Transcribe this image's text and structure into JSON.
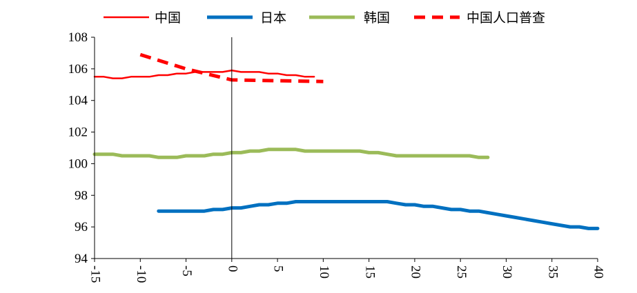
{
  "chart_data": {
    "type": "line",
    "title": "",
    "xlabel": "",
    "ylabel": "",
    "xlim": [
      -15,
      40
    ],
    "ylim": [
      94,
      108
    ],
    "x_ticks": [
      -15,
      -10,
      -5,
      0,
      5,
      10,
      15,
      20,
      25,
      30,
      35,
      40
    ],
    "y_ticks": [
      94,
      96,
      98,
      100,
      102,
      104,
      106,
      108
    ],
    "grid": false,
    "legend_position": "top",
    "series": [
      {
        "name": "中国",
        "color": "#ff0000",
        "style": "solid-thin",
        "points": [
          [
            -15,
            105.5
          ],
          [
            -14,
            105.5
          ],
          [
            -13,
            105.4
          ],
          [
            -12,
            105.4
          ],
          [
            -11,
            105.5
          ],
          [
            -10,
            105.5
          ],
          [
            -9,
            105.5
          ],
          [
            -8,
            105.6
          ],
          [
            -7,
            105.6
          ],
          [
            -6,
            105.7
          ],
          [
            -5,
            105.7
          ],
          [
            -4,
            105.8
          ],
          [
            -3,
            105.8
          ],
          [
            -2,
            105.8
          ],
          [
            -1,
            105.8
          ],
          [
            0,
            105.9
          ],
          [
            1,
            105.8
          ],
          [
            2,
            105.8
          ],
          [
            3,
            105.8
          ],
          [
            4,
            105.7
          ],
          [
            5,
            105.7
          ],
          [
            6,
            105.6
          ],
          [
            7,
            105.6
          ],
          [
            8,
            105.5
          ],
          [
            9,
            105.5
          ]
        ]
      },
      {
        "name": "日本",
        "color": "#0070c0",
        "style": "solid-thick",
        "points": [
          [
            -8,
            97.0
          ],
          [
            -7,
            97.0
          ],
          [
            -6,
            97.0
          ],
          [
            -5,
            97.0
          ],
          [
            -4,
            97.0
          ],
          [
            -3,
            97.0
          ],
          [
            -2,
            97.1
          ],
          [
            -1,
            97.1
          ],
          [
            0,
            97.2
          ],
          [
            1,
            97.2
          ],
          [
            2,
            97.3
          ],
          [
            3,
            97.4
          ],
          [
            4,
            97.4
          ],
          [
            5,
            97.5
          ],
          [
            6,
            97.5
          ],
          [
            7,
            97.6
          ],
          [
            8,
            97.6
          ],
          [
            9,
            97.6
          ],
          [
            10,
            97.6
          ],
          [
            11,
            97.6
          ],
          [
            12,
            97.6
          ],
          [
            13,
            97.6
          ],
          [
            14,
            97.6
          ],
          [
            15,
            97.6
          ],
          [
            16,
            97.6
          ],
          [
            17,
            97.6
          ],
          [
            18,
            97.5
          ],
          [
            19,
            97.4
          ],
          [
            20,
            97.4
          ],
          [
            21,
            97.3
          ],
          [
            22,
            97.3
          ],
          [
            23,
            97.2
          ],
          [
            24,
            97.1
          ],
          [
            25,
            97.1
          ],
          [
            26,
            97.0
          ],
          [
            27,
            97.0
          ],
          [
            28,
            96.9
          ],
          [
            29,
            96.8
          ],
          [
            30,
            96.7
          ],
          [
            31,
            96.6
          ],
          [
            32,
            96.5
          ],
          [
            33,
            96.4
          ],
          [
            34,
            96.3
          ],
          [
            35,
            96.2
          ],
          [
            36,
            96.1
          ],
          [
            37,
            96.0
          ],
          [
            38,
            96.0
          ],
          [
            39,
            95.9
          ],
          [
            40,
            95.9
          ]
        ]
      },
      {
        "name": "韩国",
        "color": "#9bbb59",
        "style": "solid-thick",
        "points": [
          [
            -15,
            100.6
          ],
          [
            -14,
            100.6
          ],
          [
            -13,
            100.6
          ],
          [
            -12,
            100.5
          ],
          [
            -11,
            100.5
          ],
          [
            -10,
            100.5
          ],
          [
            -9,
            100.5
          ],
          [
            -8,
            100.4
          ],
          [
            -7,
            100.4
          ],
          [
            -6,
            100.4
          ],
          [
            -5,
            100.5
          ],
          [
            -4,
            100.5
          ],
          [
            -3,
            100.5
          ],
          [
            -2,
            100.6
          ],
          [
            -1,
            100.6
          ],
          [
            0,
            100.7
          ],
          [
            1,
            100.7
          ],
          [
            2,
            100.8
          ],
          [
            3,
            100.8
          ],
          [
            4,
            100.9
          ],
          [
            5,
            100.9
          ],
          [
            6,
            100.9
          ],
          [
            7,
            100.9
          ],
          [
            8,
            100.8
          ],
          [
            9,
            100.8
          ],
          [
            10,
            100.8
          ],
          [
            11,
            100.8
          ],
          [
            12,
            100.8
          ],
          [
            13,
            100.8
          ],
          [
            14,
            100.8
          ],
          [
            15,
            100.7
          ],
          [
            16,
            100.7
          ],
          [
            17,
            100.6
          ],
          [
            18,
            100.5
          ],
          [
            19,
            100.5
          ],
          [
            20,
            100.5
          ],
          [
            21,
            100.5
          ],
          [
            22,
            100.5
          ],
          [
            23,
            100.5
          ],
          [
            24,
            100.5
          ],
          [
            25,
            100.5
          ],
          [
            26,
            100.5
          ],
          [
            27,
            100.4
          ],
          [
            28,
            100.4
          ]
        ]
      },
      {
        "name": "中国人口普查",
        "color": "#ff0000",
        "style": "dashed-thick",
        "points": [
          [
            -10,
            106.9
          ],
          [
            -5,
            106.0
          ],
          [
            0,
            105.3
          ],
          [
            5,
            105.25
          ],
          [
            10,
            105.2
          ]
        ]
      }
    ]
  }
}
